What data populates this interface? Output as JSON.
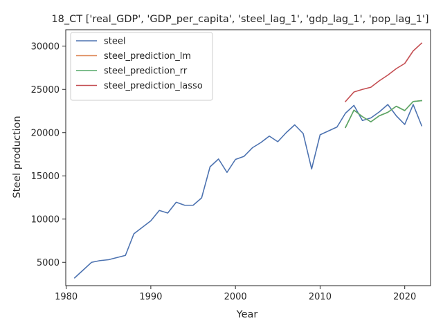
{
  "chart_data": {
    "type": "line",
    "title": "18_CT ['real_GDP', 'GDP_per_capita', 'steel_lag_1', 'gdp_lag_1', 'pop_lag_1']",
    "xlabel": "Year",
    "ylabel": "Steel production",
    "xlim": [
      1979.95,
      2023.05
    ],
    "ylim": [
      2300,
      31900
    ],
    "xticks": [
      1980,
      1990,
      2000,
      2010,
      2020
    ],
    "yticks": [
      5000,
      10000,
      15000,
      20000,
      25000,
      30000
    ],
    "grid": false,
    "legend_position": "top-left",
    "series": [
      {
        "name": "steel",
        "color": "#4c72b0",
        "x": [
          1981,
          1982,
          1983,
          1984,
          1985,
          1986,
          1987,
          1988,
          1989,
          1990,
          1991,
          1992,
          1993,
          1994,
          1995,
          1996,
          1997,
          1998,
          1999,
          2000,
          2001,
          2002,
          2003,
          2004,
          2005,
          2006,
          2007,
          2008,
          2009,
          2010,
          2011,
          2012,
          2013,
          2014,
          2015,
          2016,
          2017,
          2018,
          2019,
          2020,
          2021,
          2022
        ],
        "y": [
          3200,
          4100,
          5000,
          5200,
          5300,
          5550,
          5800,
          8300,
          9050,
          9800,
          11000,
          10700,
          11950,
          11600,
          11600,
          12450,
          16050,
          16950,
          15400,
          16900,
          17250,
          18250,
          18850,
          19600,
          18950,
          20000,
          20900,
          19900,
          15800,
          19750,
          20200,
          20650,
          22250,
          23150,
          21400,
          21700,
          22400,
          23250,
          21950,
          20950,
          23250,
          20800
        ]
      },
      {
        "name": "steel_prediction_lm",
        "color": "#dd8452",
        "x": [
          2013,
          2014,
          2015,
          2016,
          2017,
          2018,
          2019,
          2020,
          2021,
          2022
        ],
        "y": [
          20600,
          22600,
          21850,
          21250,
          21950,
          22350,
          23050,
          22550,
          23600,
          23700
        ]
      },
      {
        "name": "steel_prediction_rr",
        "color": "#55a868",
        "x": [
          2013,
          2014,
          2015,
          2016,
          2017,
          2018,
          2019,
          2020,
          2021,
          2022
        ],
        "y": [
          20600,
          22600,
          21850,
          21250,
          21950,
          22350,
          23050,
          22550,
          23600,
          23700
        ]
      },
      {
        "name": "steel_prediction_lasso",
        "color": "#c44e52",
        "x": [
          2013,
          2014,
          2015,
          2016,
          2017,
          2018,
          2019,
          2020,
          2021,
          2022
        ],
        "y": [
          23600,
          24700,
          25000,
          25250,
          26000,
          26650,
          27400,
          28000,
          29450,
          30350
        ]
      }
    ]
  }
}
